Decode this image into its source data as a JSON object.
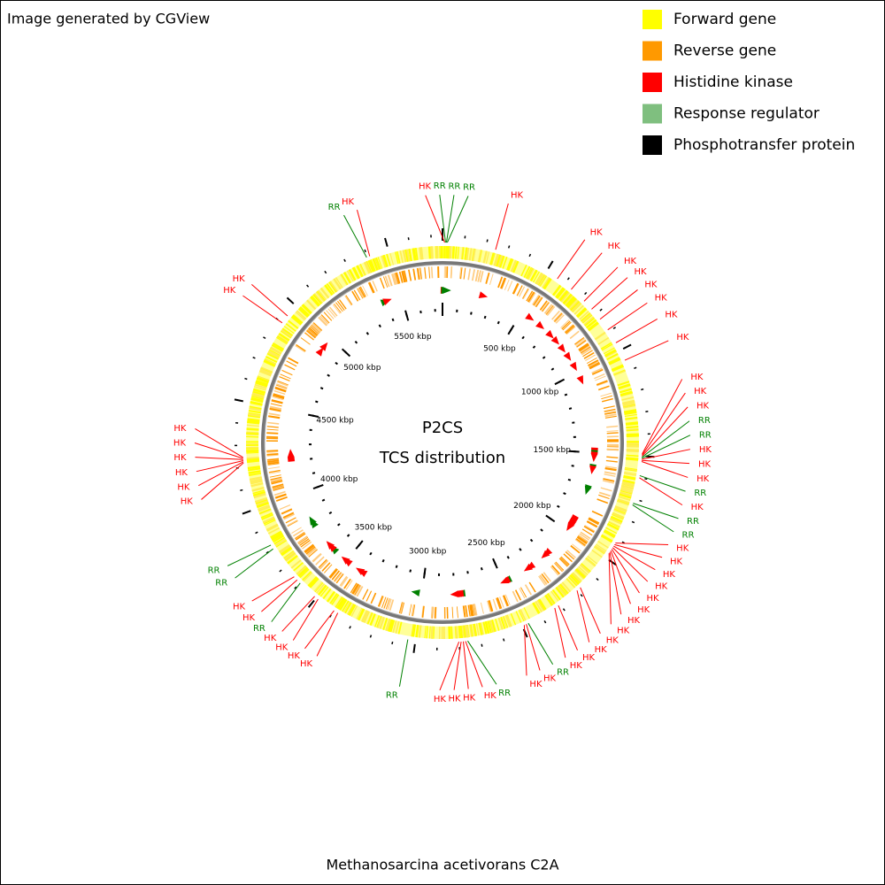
{
  "caption": "Image generated by CGView",
  "legend": [
    {
      "label": "Forward gene",
      "color": "#ffff00"
    },
    {
      "label": "Reverse gene",
      "color": "#ff9900"
    },
    {
      "label": "Histidine kinase",
      "color": "#ff0000"
    },
    {
      "label": "Response regulator",
      "color": "#7fbf7f"
    },
    {
      "label": "Phosphotransfer protein",
      "color": "#000000"
    }
  ],
  "center": [
    "P2CS",
    "TCS distribution"
  ],
  "footer": "Methanosarcina acetivorans C2A",
  "position_range": [
    0,
    5751
  ],
  "label_colors": {
    "HK": "#ff0000",
    "RR": "#008000"
  },
  "scale": [
    {
      "value": 500,
      "label": "500 kbp"
    },
    {
      "value": 1000,
      "label": "1000 kbp"
    },
    {
      "value": 1500,
      "label": "1500 kbp"
    },
    {
      "value": 2000,
      "label": "2000 kbp"
    },
    {
      "value": 2500,
      "label": "2500 kbp"
    },
    {
      "value": 3000,
      "label": "3000 kbp"
    },
    {
      "value": 3500,
      "label": "3500 kbp"
    },
    {
      "value": 4000,
      "label": "4000 kbp"
    },
    {
      "value": 4500,
      "label": "4500 kbp"
    },
    {
      "value": 5000,
      "label": "5000 kbp"
    },
    {
      "value": 5500,
      "label": "5500 kbp"
    }
  ],
  "features": [
    {
      "label": "HK",
      "position": 10
    },
    {
      "label": "RR",
      "position": 14
    },
    {
      "label": "RR",
      "position": 18
    },
    {
      "label": "RR",
      "position": 22
    },
    {
      "label": "HK",
      "position": 246
    },
    {
      "label": "HK",
      "position": 560
    },
    {
      "label": "HK",
      "position": 640
    },
    {
      "label": "HK",
      "position": 720
    },
    {
      "label": "HK",
      "position": 770
    },
    {
      "label": "HK",
      "position": 830
    },
    {
      "label": "HK",
      "position": 890
    },
    {
      "label": "HK",
      "position": 960
    },
    {
      "label": "HK",
      "position": 1050
    },
    {
      "label": "HK",
      "position": 1490
    },
    {
      "label": "HK",
      "position": 1495
    },
    {
      "label": "HK",
      "position": 1500
    },
    {
      "label": "RR",
      "position": 1505
    },
    {
      "label": "RR",
      "position": 1510
    },
    {
      "label": "HK",
      "position": 1515
    },
    {
      "label": "HK",
      "position": 1520
    },
    {
      "label": "HK",
      "position": 1525
    },
    {
      "label": "RR",
      "position": 1590
    },
    {
      "label": "HK",
      "position": 1600
    },
    {
      "label": "RR",
      "position": 1720
    },
    {
      "label": "RR",
      "position": 1728
    },
    {
      "label": "HK",
      "position": 1920
    },
    {
      "label": "HK",
      "position": 1928
    },
    {
      "label": "HK",
      "position": 1936
    },
    {
      "label": "HK",
      "position": 1944
    },
    {
      "label": "HK",
      "position": 1952
    },
    {
      "label": "HK",
      "position": 1960
    },
    {
      "label": "HK",
      "position": 1968
    },
    {
      "label": "HK",
      "position": 1975
    },
    {
      "label": "HK",
      "position": 2180
    },
    {
      "label": "HK",
      "position": 2200
    },
    {
      "label": "HK",
      "position": 2310
    },
    {
      "label": "HK",
      "position": 2330
    },
    {
      "label": "RR",
      "position": 2470
    },
    {
      "label": "HK",
      "position": 2480
    },
    {
      "label": "HK",
      "position": 2490
    },
    {
      "label": "RR",
      "position": 2760
    },
    {
      "label": "HK",
      "position": 2770
    },
    {
      "label": "HK",
      "position": 2780
    },
    {
      "label": "HK",
      "position": 2790
    },
    {
      "label": "HK",
      "position": 2800
    },
    {
      "label": "RR",
      "position": 3035
    },
    {
      "label": "HK",
      "position": 3380
    },
    {
      "label": "HK",
      "position": 3400
    },
    {
      "label": "HK",
      "position": 3490
    },
    {
      "label": "HK",
      "position": 3510
    },
    {
      "label": "RR",
      "position": 3600
    },
    {
      "label": "HK",
      "position": 3620
    },
    {
      "label": "HK",
      "position": 3640
    },
    {
      "label": "RR",
      "position": 3800
    },
    {
      "label": "RR",
      "position": 3820
    },
    {
      "label": "HK",
      "position": 4220
    },
    {
      "label": "HK",
      "position": 4225
    },
    {
      "label": "HK",
      "position": 4230
    },
    {
      "label": "HK",
      "position": 4235
    },
    {
      "label": "HK",
      "position": 4240
    },
    {
      "label": "HK",
      "position": 4245
    },
    {
      "label": "HK",
      "position": 4900
    },
    {
      "label": "HK",
      "position": 4940
    },
    {
      "label": "RR",
      "position": 5395
    },
    {
      "label": "HK",
      "position": 5410
    }
  ]
}
